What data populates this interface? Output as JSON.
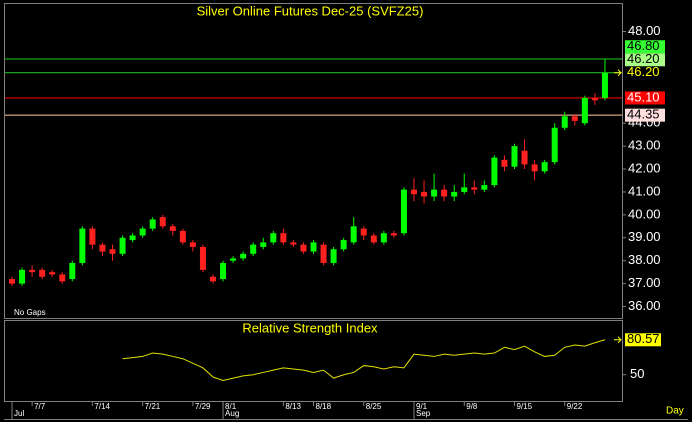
{
  "chart_data": [
    {
      "type": "candlestick",
      "title": "Silver Online Futures Dec-25 (SVFZ25)",
      "note": "No Gaps",
      "x_label": "Day",
      "categories": [
        null,
        null,
        "7/7",
        null,
        null,
        null,
        null,
        null,
        "7/14",
        null,
        null,
        null,
        null,
        "7/21",
        null,
        null,
        null,
        null,
        "7/29",
        null,
        null,
        "8/1",
        null,
        null,
        null,
        null,
        null,
        "8/13",
        null,
        null,
        "8/18",
        null,
        null,
        null,
        null,
        "8/25",
        null,
        null,
        null,
        null,
        "9/1",
        null,
        null,
        null,
        null,
        "9/8",
        null,
        null,
        null,
        null,
        "9/15",
        null,
        null,
        null,
        null,
        "9/22",
        null,
        null,
        null,
        null
      ],
      "month_labels": [
        "Jul",
        null,
        null,
        null,
        null,
        null,
        null,
        null,
        null,
        null,
        null,
        null,
        null,
        null,
        null,
        null,
        null,
        null,
        null,
        null,
        null,
        "Aug",
        null,
        null,
        null,
        null,
        null,
        null,
        null,
        null,
        null,
        null,
        null,
        null,
        null,
        null,
        null,
        null,
        null,
        null,
        "Sep",
        null,
        null,
        null,
        null,
        null,
        null,
        null,
        null,
        null,
        null,
        null,
        null,
        null,
        null,
        null,
        null,
        null,
        null,
        null
      ],
      "open": [
        37.2,
        37.0,
        37.6,
        37.6,
        37.5,
        37.4,
        37.2,
        37.9,
        39.4,
        38.7,
        38.5,
        38.3,
        38.9,
        39.1,
        39.4,
        39.9,
        39.5,
        39.3,
        38.8,
        38.6,
        37.3,
        37.2,
        38.0,
        38.1,
        38.3,
        38.6,
        38.8,
        39.2,
        38.8,
        38.7,
        38.4,
        38.7,
        37.9,
        38.5,
        38.8,
        39.4,
        39.1,
        38.8,
        39.2,
        39.2,
        41.1,
        41.0,
        40.8,
        41.1,
        40.8,
        41.0,
        41.2,
        41.1,
        41.3,
        42.4,
        42.1,
        42.8,
        42.2,
        41.9,
        42.3,
        43.8,
        44.3,
        44.0,
        45.1,
        45.1
      ],
      "high": [
        37.3,
        37.7,
        37.8,
        37.7,
        37.6,
        37.5,
        38.0,
        39.5,
        39.5,
        38.8,
        38.7,
        39.1,
        39.2,
        39.5,
        39.9,
        40.0,
        39.6,
        39.4,
        38.9,
        38.7,
        37.4,
        38.0,
        38.2,
        38.4,
        38.8,
        39.0,
        39.3,
        39.4,
        38.9,
        38.8,
        38.9,
        38.8,
        38.6,
        39.0,
        39.9,
        39.5,
        39.2,
        39.3,
        39.3,
        41.2,
        41.6,
        41.5,
        41.8,
        41.3,
        41.3,
        41.8,
        41.5,
        41.5,
        42.6,
        42.6,
        43.1,
        43.3,
        42.4,
        42.4,
        44.0,
        44.5,
        44.4,
        45.2,
        45.3,
        46.8
      ],
      "low": [
        36.9,
        36.9,
        37.3,
        37.2,
        37.3,
        37.0,
        37.1,
        37.8,
        38.5,
        38.2,
        38.0,
        38.2,
        38.8,
        39.0,
        39.3,
        39.4,
        39.1,
        38.7,
        38.4,
        37.5,
        37.0,
        37.1,
        37.9,
        38.0,
        38.2,
        38.5,
        38.7,
        38.7,
        38.6,
        38.3,
        38.3,
        37.8,
        37.8,
        38.4,
        38.7,
        38.9,
        38.7,
        38.7,
        39.0,
        39.1,
        40.6,
        40.5,
        40.6,
        40.6,
        40.6,
        40.9,
        40.9,
        41.0,
        41.2,
        41.9,
        42.0,
        42.0,
        41.5,
        41.8,
        42.2,
        43.7,
        43.9,
        43.9,
        44.8,
        45.0
      ],
      "close": [
        37.0,
        37.6,
        37.5,
        37.3,
        37.4,
        37.1,
        37.9,
        39.4,
        38.7,
        38.4,
        38.3,
        39.0,
        39.1,
        39.4,
        39.8,
        39.5,
        39.3,
        38.8,
        38.6,
        37.6,
        37.1,
        37.9,
        38.1,
        38.3,
        38.7,
        38.8,
        39.2,
        38.8,
        38.7,
        38.4,
        38.8,
        37.9,
        38.5,
        38.9,
        39.5,
        39.1,
        38.8,
        39.2,
        39.1,
        41.1,
        40.9,
        40.8,
        41.1,
        40.8,
        41.0,
        41.2,
        41.1,
        41.3,
        42.5,
        42.1,
        43.0,
        42.2,
        41.9,
        42.3,
        43.8,
        44.3,
        44.1,
        45.1,
        45.0,
        46.2
      ],
      "up_color": "#00ff00",
      "down_color": "#ff2020",
      "last_price": {
        "value": 46.2,
        "label": "46.20"
      },
      "levels": [
        {
          "value": 46.8,
          "label": "46.80",
          "color": "#22cc22",
          "box_color": "#33ff33",
          "text_color": "#000000"
        },
        {
          "value": 46.2,
          "label": "46.20",
          "color": "#22cc22",
          "box_color": "#aaff88",
          "text_color": "#000000"
        },
        {
          "value": 45.1,
          "label": "45.10",
          "color": "#ff0000",
          "box_color": "#ff0000",
          "text_color": "#ffffff"
        },
        {
          "value": 44.35,
          "label": "44.35",
          "color": "#ffcc99",
          "box_color": "#ffdede",
          "text_color": "#000000"
        }
      ],
      "ylim": [
        35.5,
        49.2
      ],
      "yticks": [
        {
          "value": 36,
          "label": "36.00"
        },
        {
          "value": 37,
          "label": "37.00"
        },
        {
          "value": 38,
          "label": "38.00"
        },
        {
          "value": 39,
          "label": "39.00"
        },
        {
          "value": 40,
          "label": "40.00"
        },
        {
          "value": 41,
          "label": "41.00"
        },
        {
          "value": 42,
          "label": "42.00"
        },
        {
          "value": 43,
          "label": "43.00"
        },
        {
          "value": 44,
          "label": "44.00"
        },
        {
          "value": 48,
          "label": "48.00"
        }
      ]
    },
    {
      "type": "line",
      "title": "Relative Strength Index",
      "color": "#e0e000",
      "values": [
        null,
        null,
        null,
        null,
        null,
        null,
        null,
        null,
        null,
        null,
        null,
        64,
        65,
        66,
        69,
        68,
        66,
        64,
        60,
        56,
        48,
        45,
        47,
        49,
        50,
        52,
        54,
        56,
        55,
        54,
        52,
        54,
        47,
        50,
        52,
        58,
        57,
        55,
        57,
        56,
        68,
        67,
        66,
        68,
        67,
        68,
        69,
        68,
        69,
        74,
        72,
        75,
        70,
        66,
        67,
        74,
        76,
        75,
        78,
        80.57
      ],
      "ylim": [
        27,
        97
      ],
      "yticks": [
        50
      ]
    }
  ]
}
